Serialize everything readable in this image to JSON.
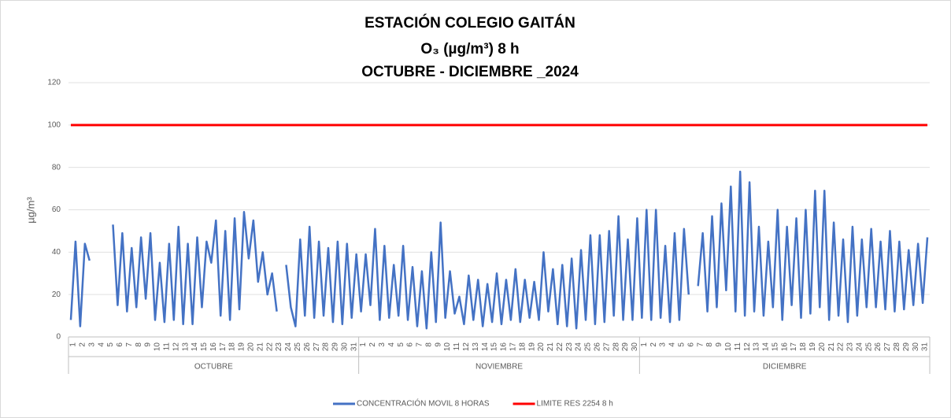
{
  "chart_data": {
    "type": "line",
    "title_lines": [
      "ESTACIÓN COLEGIO GAITÁN",
      "O₃ (µg/m³) 8 h",
      "OCTUBRE - DICIEMBRE _2024"
    ],
    "y_label": "µg/m³",
    "months": [
      "OCTUBRE",
      "NOVIEMBRE",
      "DICIEMBRE"
    ],
    "categories": [
      "1",
      null,
      "2",
      null,
      "3",
      null,
      "4",
      null,
      "5",
      null,
      "6",
      null,
      "7",
      null,
      "8",
      null,
      "9",
      null,
      "10",
      null,
      "11",
      null,
      "12",
      null,
      "13",
      null,
      "14",
      null,
      "15",
      null,
      "16",
      null,
      "17",
      null,
      "18",
      null,
      "19",
      null,
      "20",
      null,
      "21",
      null,
      "22",
      null,
      "23",
      null,
      "24",
      null,
      "25",
      null,
      "26",
      null,
      "27",
      null,
      "28",
      null,
      "29",
      null,
      "30",
      null,
      "31",
      null,
      "1",
      null,
      "2",
      null,
      "3",
      null,
      "4",
      null,
      "5",
      null,
      "6",
      null,
      "7",
      null,
      "8",
      null,
      "9",
      null,
      "10",
      null,
      "11",
      null,
      "12",
      null,
      "13",
      null,
      "14",
      null,
      "15",
      null,
      "16",
      null,
      "17",
      null,
      "18",
      null,
      "19",
      null,
      "20",
      null,
      "21",
      null,
      "22",
      null,
      "23",
      null,
      "24",
      null,
      "25",
      null,
      "26",
      null,
      "27",
      null,
      "28",
      null,
      "29",
      null,
      "30",
      null,
      "1",
      null,
      "2",
      null,
      "3",
      null,
      "4",
      null,
      "5",
      null,
      "6",
      null,
      "7",
      null,
      "8",
      null,
      "9",
      null,
      "10",
      null,
      "11",
      null,
      "12",
      null,
      "13",
      null,
      "14",
      null,
      "15",
      null,
      "16",
      null,
      "17",
      null,
      "18",
      null,
      "19",
      null,
      "20",
      null,
      "21",
      null,
      "22",
      null,
      "23",
      null,
      "24",
      null,
      "25",
      null,
      "26",
      null,
      "27",
      null,
      "28",
      null,
      "29",
      null,
      "30",
      null,
      "31",
      null
    ],
    "series": [
      {
        "name": "CONCENTRACIÓN MOVIL 8 HORAS",
        "color": "#4472c4",
        "values": [
          8,
          45,
          5,
          44,
          36,
          null,
          null,
          null,
          null,
          53,
          15,
          49,
          12,
          42,
          14,
          47,
          18,
          49,
          8,
          35,
          7,
          44,
          8,
          52,
          6,
          44,
          6,
          47,
          14,
          45,
          35,
          55,
          10,
          50,
          8,
          56,
          13,
          59,
          37,
          55,
          26,
          40,
          20,
          30,
          12,
          null,
          34,
          14,
          5,
          46,
          10,
          52,
          9,
          45,
          10,
          42,
          7,
          45,
          6,
          44,
          9,
          39,
          12,
          39,
          15,
          51,
          8,
          43,
          9,
          34,
          10,
          43,
          8,
          33,
          5,
          31,
          4,
          40,
          7,
          54,
          9,
          31,
          11,
          19,
          6,
          29,
          8,
          27,
          5,
          25,
          7,
          30,
          6,
          27,
          8,
          32,
          7,
          27,
          9,
          26,
          8,
          40,
          12,
          32,
          6,
          34,
          5,
          37,
          4,
          41,
          8,
          48,
          6,
          48,
          7,
          50,
          10,
          57,
          8,
          46,
          8,
          56,
          9,
          60,
          8,
          60,
          9,
          43,
          7,
          49,
          8,
          51,
          20,
          null,
          24,
          49,
          12,
          57,
          14,
          63,
          22,
          71,
          12,
          78,
          10,
          73,
          12,
          52,
          10,
          45,
          14,
          60,
          8,
          52,
          15,
          56,
          9,
          60,
          11,
          69,
          14,
          69,
          8,
          54,
          10,
          46,
          7,
          52,
          10,
          46,
          14,
          51,
          14,
          45,
          13,
          50,
          12,
          45,
          13,
          41,
          15,
          44,
          16,
          47
        ]
      },
      {
        "name": "LIMITE RES 2254 8 h",
        "color": "#ff0000",
        "values": [
          100,
          100,
          100,
          100,
          100,
          100,
          100,
          100,
          100,
          100,
          100,
          100,
          100,
          100,
          100,
          100,
          100,
          100,
          100,
          100,
          100,
          100,
          100,
          100,
          100,
          100,
          100,
          100,
          100,
          100,
          100,
          100,
          100,
          100,
          100,
          100,
          100,
          100,
          100,
          100,
          100,
          100,
          100,
          100,
          100,
          100,
          100,
          100,
          100,
          100,
          100,
          100,
          100,
          100,
          100,
          100,
          100,
          100,
          100,
          100,
          100,
          100,
          100,
          100,
          100,
          100,
          100,
          100,
          100,
          100,
          100,
          100,
          100,
          100,
          100,
          100,
          100,
          100,
          100,
          100,
          100,
          100,
          100,
          100,
          100,
          100,
          100,
          100,
          100,
          100,
          100,
          100,
          100,
          100,
          100,
          100,
          100,
          100,
          100,
          100,
          100,
          100,
          100,
          100,
          100,
          100,
          100,
          100,
          100,
          100,
          100,
          100,
          100,
          100,
          100,
          100,
          100,
          100,
          100,
          100,
          100,
          100,
          100,
          100,
          100,
          100,
          100,
          100,
          100,
          100,
          100,
          100,
          100,
          100,
          100,
          100,
          100,
          100,
          100,
          100,
          100,
          100,
          100,
          100,
          100,
          100,
          100,
          100,
          100,
          100,
          100,
          100,
          100,
          100,
          100,
          100,
          100,
          100,
          100,
          100,
          100,
          100,
          100,
          100,
          100,
          100,
          100,
          100,
          100,
          100,
          100,
          100,
          100,
          100,
          100,
          100,
          100,
          100,
          100,
          100,
          100,
          100,
          100,
          100
        ]
      }
    ],
    "ylim": [
      0,
      120
    ],
    "yticks": [
      0,
      20,
      40,
      60,
      80,
      100,
      120
    ],
    "grid": true
  }
}
